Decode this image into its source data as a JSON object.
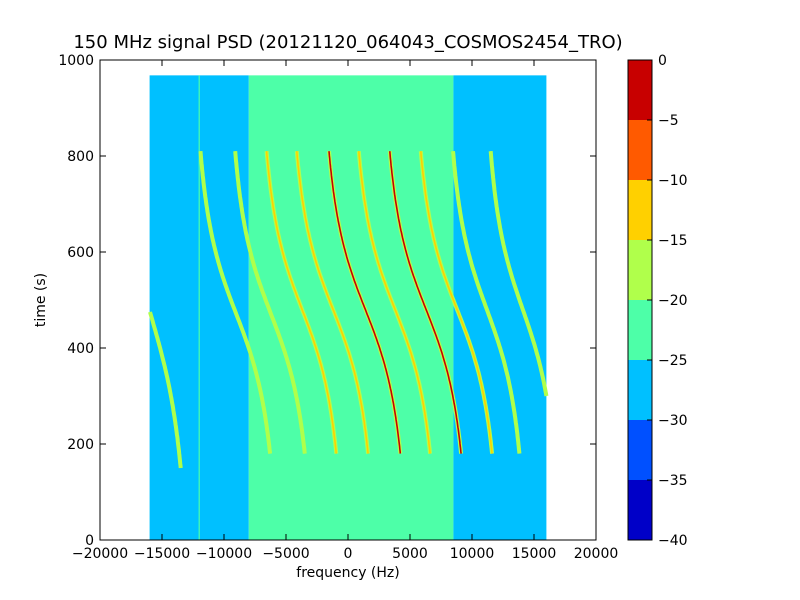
{
  "chart_data": {
    "type": "heatmap",
    "title": "150 MHz signal PSD (20121120_064043_COSMOS2454_TRO)",
    "xlabel": "frequency (Hz)",
    "ylabel": "time (s)",
    "xlim": [
      -20000,
      20000
    ],
    "ylim": [
      0,
      1000
    ],
    "x_ticks": [
      -20000,
      -15000,
      -10000,
      -5000,
      0,
      5000,
      10000,
      15000,
      20000
    ],
    "x_tick_labels": [
      "−20000",
      "−15000",
      "−10000",
      "−5000",
      "0",
      "5000",
      "10000",
      "15000",
      "20000"
    ],
    "y_ticks": [
      0,
      200,
      400,
      600,
      800,
      1000
    ],
    "y_tick_labels": [
      "0",
      "200",
      "400",
      "600",
      "800",
      "1000"
    ],
    "data_extent": {
      "x": [
        -16000,
        16000
      ],
      "y": [
        0,
        968
      ]
    },
    "background_regions": [
      {
        "x": [
          -16000,
          -8000
        ],
        "level": -27.5
      },
      {
        "x": [
          -8000,
          8500
        ],
        "level": -22.5
      },
      {
        "x": [
          8500,
          16000
        ],
        "level": -27.5
      }
    ],
    "vertical_lines": [
      {
        "x": -12000,
        "y": [
          0,
          968
        ],
        "level": -22.5
      }
    ],
    "traces": [
      {
        "f0": -15800,
        "t_center": 460,
        "span": 220,
        "slope": -3800,
        "t_range": [
          150,
          810
        ],
        "peak": -17.5
      },
      {
        "f0": -9000,
        "t_center": 470,
        "span": 180,
        "slope": -4200,
        "t_range": [
          180,
          810
        ],
        "peak": -17.5
      },
      {
        "f0": -6200,
        "t_center": 470,
        "span": 180,
        "slope": -4200,
        "t_range": [
          180,
          810
        ],
        "peak": -17.5
      },
      {
        "f0": -3700,
        "t_center": 480,
        "span": 180,
        "slope": -4200,
        "t_range": [
          180,
          810
        ],
        "peak": -12.5
      },
      {
        "f0": -1200,
        "t_center": 480,
        "span": 180,
        "slope": -4300,
        "t_range": [
          180,
          810
        ],
        "peak": -12.5
      },
      {
        "f0": 1400,
        "t_center": 480,
        "span": 180,
        "slope": -4300,
        "t_range": [
          180,
          810
        ],
        "peak": -2.5
      },
      {
        "f0": 3800,
        "t_center": 480,
        "span": 180,
        "slope": -4300,
        "t_range": [
          180,
          810
        ],
        "peak": -12.5
      },
      {
        "f0": 6300,
        "t_center": 480,
        "span": 180,
        "slope": -4300,
        "t_range": [
          180,
          810
        ],
        "peak": -2.5
      },
      {
        "f0": 8800,
        "t_center": 480,
        "span": 180,
        "slope": -4300,
        "t_range": [
          180,
          810
        ],
        "peak": -12.5
      },
      {
        "f0": 11200,
        "t_center": 480,
        "span": 180,
        "slope": -4000,
        "t_range": [
          180,
          810
        ],
        "peak": -17.5
      },
      {
        "f0": 14100,
        "t_center": 480,
        "span": 180,
        "slope": -3800,
        "t_range": [
          180,
          810
        ],
        "peak": -17.5
      }
    ],
    "colorbar": {
      "levels": [
        -40,
        -35,
        -30,
        -25,
        -20,
        -15,
        -10,
        -5,
        0
      ],
      "tick_labels": [
        "−40",
        "−35",
        "−30",
        "−25",
        "−20",
        "−15",
        "−10",
        "−5",
        "0"
      ],
      "colors": [
        "#0000c8",
        "#0050ff",
        "#00c0ff",
        "#4dffa8",
        "#b0ff4b",
        "#ffd000",
        "#ff5a00",
        "#c80000"
      ],
      "range": [
        -40,
        0
      ]
    },
    "grid": false,
    "legend": "colorbar-right"
  }
}
